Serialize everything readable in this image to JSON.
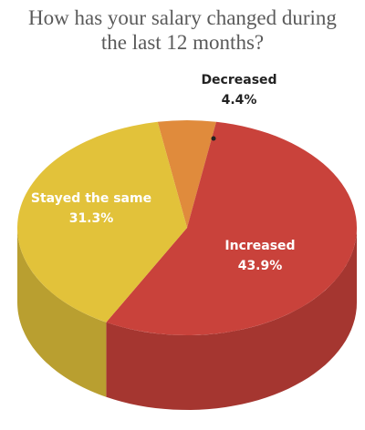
{
  "chart_data": {
    "type": "pie",
    "title": "How has your salary changed during the last 12 months?",
    "categories": [
      "Decreased",
      "Increased",
      "Stayed the same"
    ],
    "values": [
      4.4,
      43.9,
      31.3
    ],
    "value_labels": [
      "4.4%",
      "43.9%",
      "31.3%"
    ],
    "colors": [
      "#e08b3c",
      "#c9423b",
      "#e2c23a"
    ]
  }
}
